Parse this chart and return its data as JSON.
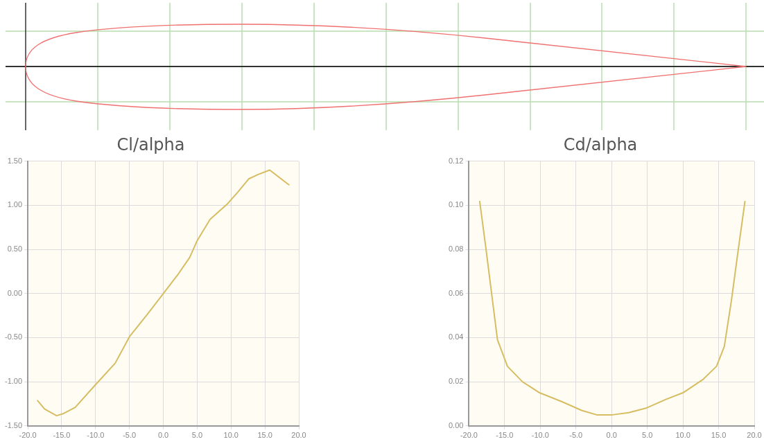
{
  "chart_data": [
    {
      "type": "line",
      "title": "Cl/alpha",
      "grid": true,
      "marker": "none",
      "xlim": [
        -20,
        20
      ],
      "xticks": [
        {
          "value": -20,
          "label": "-20.0"
        },
        {
          "value": -15,
          "label": "-15.0"
        },
        {
          "value": -10,
          "label": "-10.0"
        },
        {
          "value": -5,
          "label": "-5.0"
        },
        {
          "value": 0,
          "label": "0.0"
        },
        {
          "value": 5,
          "label": "5.0"
        },
        {
          "value": 10,
          "label": "10.0"
        },
        {
          "value": 15,
          "label": "15.0"
        },
        {
          "value": 20,
          "label": "20.0"
        }
      ],
      "ylim": [
        -1.5,
        1.5
      ],
      "yticks": [
        {
          "value": -1.5,
          "label": "-1.50"
        },
        {
          "value": -1,
          "label": "-1.00"
        },
        {
          "value": -0.5,
          "label": "-0.50"
        },
        {
          "value": 0,
          "label": "0.00"
        },
        {
          "value": 0.5,
          "label": "0.50"
        },
        {
          "value": 1,
          "label": "1.00"
        },
        {
          "value": 1.5,
          "label": "1.50"
        }
      ],
      "series": [
        {
          "color": "#d6bd62",
          "x": [
            -18.6,
            -17.5,
            -15.75,
            -14.7,
            -13.0,
            -10.2,
            -7.1,
            -5.0,
            -2.3,
            0.0,
            2.2,
            3.9,
            5.0,
            6.9,
            9.5,
            11.0,
            12.6,
            14.0,
            15.7,
            18.6
          ],
          "values": [
            -1.21,
            -1.31,
            -1.385,
            -1.36,
            -1.29,
            -1.05,
            -0.79,
            -0.49,
            -0.23,
            0.0,
            0.22,
            0.41,
            0.6,
            0.84,
            1.02,
            1.15,
            1.3,
            1.35,
            1.4,
            1.23
          ]
        }
      ]
    },
    {
      "type": "line",
      "title": "Cd/alpha",
      "grid": true,
      "marker": "none",
      "xlim": [
        -20,
        20
      ],
      "xticks": [
        {
          "value": -20,
          "label": "-20.0"
        },
        {
          "value": -15,
          "label": "-15.0"
        },
        {
          "value": -10,
          "label": "-10.0"
        },
        {
          "value": -5,
          "label": "-5.0"
        },
        {
          "value": 0,
          "label": "0.0"
        },
        {
          "value": 5,
          "label": "5.0"
        },
        {
          "value": 10,
          "label": "10.0"
        },
        {
          "value": 15,
          "label": "15.0"
        },
        {
          "value": 20,
          "label": "20.0"
        }
      ],
      "ylim": [
        0,
        0.12
      ],
      "yticks": [
        {
          "value": 0,
          "label": "0.00"
        },
        {
          "value": 0.02,
          "label": "0.02"
        },
        {
          "value": 0.04,
          "label": "0.04"
        },
        {
          "value": 0.06,
          "label": "0.06"
        },
        {
          "value": 0.08,
          "label": "0.08"
        },
        {
          "value": 0.1,
          "label": "0.10"
        },
        {
          "value": 0.12,
          "label": "0.12"
        }
      ],
      "series": [
        {
          "color": "#d6bd62",
          "x": [
            -18.5,
            -17.6,
            -16.9,
            -16.0,
            -14.6,
            -12.5,
            -10.1,
            -7.0,
            -4.2,
            -2.1,
            0.1,
            2.4,
            4.8,
            7.6,
            10.0,
            12.8,
            14.7,
            15.8,
            16.8,
            17.8,
            18.7
          ],
          "values": [
            0.102,
            0.08,
            0.062,
            0.039,
            0.027,
            0.02,
            0.015,
            0.011,
            0.007,
            0.005,
            0.005,
            0.006,
            0.008,
            0.012,
            0.015,
            0.021,
            0.027,
            0.036,
            0.057,
            0.081,
            0.102
          ]
        }
      ]
    }
  ]
}
